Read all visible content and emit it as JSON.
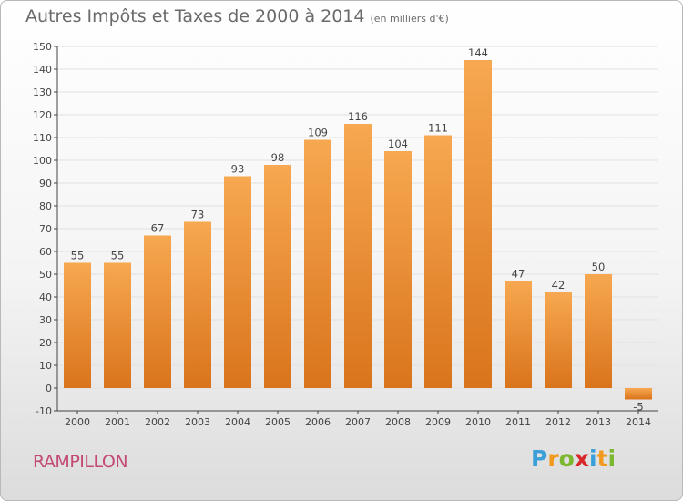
{
  "header": {
    "title": "Autres Impôts et Taxes de 2000 à 2014",
    "unit": "(en milliers d'€)"
  },
  "footer": {
    "commune": "RAMPILLON",
    "logo": "Proxiti",
    "logo_letters": [
      {
        "ch": "P",
        "color": "#3b9fd9"
      },
      {
        "ch": "r",
        "color": "#f29a1d"
      },
      {
        "ch": "o",
        "color": "#7cb82f"
      },
      {
        "ch": "x",
        "color": "#d9282a"
      },
      {
        "ch": "i",
        "color": "#3b9fd9"
      },
      {
        "ch": "t",
        "color": "#f29a1d"
      },
      {
        "ch": "i",
        "color": "#7cb82f"
      }
    ]
  },
  "colors": {
    "bar_light": "#f7a850",
    "bar_dark": "#d9741c",
    "axis": "#444444",
    "grid": "#e1e1e1"
  },
  "chart_data": {
    "type": "bar",
    "title": "Autres Impôts et Taxes de 2000 à 2014",
    "subtitle": "(en milliers d'€)",
    "categories": [
      "2000",
      "2001",
      "2002",
      "2003",
      "2004",
      "2005",
      "2006",
      "2007",
      "2008",
      "2009",
      "2010",
      "2011",
      "2012",
      "2013",
      "2014"
    ],
    "values": [
      55,
      55,
      67,
      73,
      93,
      98,
      109,
      116,
      104,
      111,
      144,
      47,
      42,
      50,
      -5
    ],
    "ylim": [
      -10,
      150
    ],
    "yticks": [
      -10,
      0,
      10,
      20,
      30,
      40,
      50,
      60,
      70,
      80,
      90,
      100,
      110,
      120,
      130,
      140,
      150
    ],
    "grid": true,
    "xlabel": "",
    "ylabel": ""
  }
}
